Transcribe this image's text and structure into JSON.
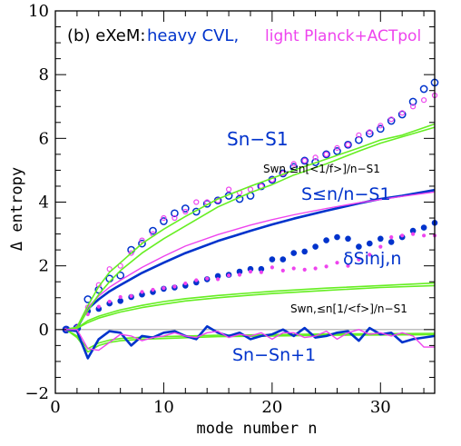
{
  "chart_data": {
    "type": "line",
    "panel_label": "(b) eXeM:",
    "legend_heavy": "heavy CVL,",
    "legend_light": "light Planck+ACTpol",
    "xlabel": "mode number n",
    "ylabel": "Δ entropy",
    "xlim": [
      0,
      35
    ],
    "ylim": [
      -2,
      10
    ],
    "x_ticks": [
      0,
      10,
      20,
      30
    ],
    "y_ticks": [
      -2,
      0,
      2,
      4,
      6,
      8,
      10
    ],
    "colors": {
      "heavy": "#0033cc",
      "light": "#ee44ee",
      "green": "#66ee22",
      "zero_line": "#aaaaaa"
    },
    "annotations": {
      "sn_s1": "Sn−S1",
      "swn_inv_mean": "Swn,≤n[<1/f>]/n−S1",
      "sle_n": "S≤n/n−S1",
      "delta_s_inj": "δSinj,n",
      "swn_mean_inv": "Swn,≤n[1/<f>]/n−S1",
      "sn_sn1": "Sn−Sn+1"
    },
    "series": [
      {
        "key": "sn_s1_heavy",
        "style": "open-circle",
        "color_key": "heavy",
        "x": [
          1,
          2,
          3,
          4,
          5,
          6,
          7,
          8,
          9,
          10,
          11,
          12,
          13,
          14,
          15,
          16,
          17,
          18,
          19,
          20,
          21,
          22,
          23,
          24,
          25,
          26,
          27,
          28,
          29,
          30,
          31,
          32,
          33,
          34,
          35
        ],
        "y": [
          0,
          0.05,
          0.95,
          1.25,
          1.6,
          1.7,
          2.5,
          2.7,
          3.1,
          3.4,
          3.65,
          3.8,
          3.7,
          3.95,
          4.05,
          4.2,
          4.1,
          4.2,
          4.5,
          4.7,
          4.9,
          5.1,
          5.3,
          5.25,
          5.5,
          5.6,
          5.8,
          5.95,
          6.15,
          6.3,
          6.55,
          6.75,
          7.15,
          7.55,
          7.75
        ]
      },
      {
        "key": "sn_s1_light",
        "style": "open-circle-small",
        "color_key": "light",
        "x": [
          1,
          2,
          3,
          4,
          5,
          6,
          7,
          8,
          9,
          10,
          11,
          12,
          13,
          14,
          15,
          16,
          17,
          18,
          19,
          20,
          21,
          22,
          23,
          24,
          25,
          26,
          27,
          28,
          29,
          30,
          31,
          32,
          33,
          34,
          35
        ],
        "y": [
          0,
          0.1,
          0.7,
          1.4,
          1.9,
          2.0,
          2.4,
          2.8,
          3.0,
          3.5,
          3.5,
          3.7,
          4.0,
          4.0,
          4.05,
          4.4,
          4.3,
          4.4,
          4.5,
          4.7,
          4.9,
          5.2,
          5.3,
          5.4,
          5.5,
          5.7,
          5.8,
          6.1,
          6.2,
          6.4,
          6.6,
          6.8,
          7.0,
          7.2,
          7.35
        ]
      },
      {
        "key": "delta_sinj_heavy",
        "style": "filled-circle",
        "color_key": "heavy",
        "x": [
          1,
          2,
          3,
          4,
          5,
          6,
          7,
          8,
          9,
          10,
          11,
          12,
          13,
          14,
          15,
          16,
          17,
          18,
          19,
          20,
          21,
          22,
          23,
          24,
          25,
          26,
          27,
          28,
          29,
          30,
          31,
          32,
          33,
          34,
          35
        ],
        "y": [
          0,
          0.08,
          0.58,
          0.65,
          0.82,
          0.9,
          1.02,
          1.1,
          1.18,
          1.28,
          1.32,
          1.38,
          1.48,
          1.58,
          1.68,
          1.72,
          1.82,
          1.9,
          1.9,
          2.2,
          2.2,
          2.4,
          2.45,
          2.6,
          2.8,
          2.9,
          2.85,
          2.6,
          2.7,
          2.85,
          2.75,
          2.9,
          3.1,
          3.2,
          3.35
        ]
      },
      {
        "key": "delta_sinj_light",
        "style": "filled-circle-small",
        "color_key": "light",
        "x": [
          1,
          2,
          3,
          4,
          5,
          6,
          7,
          8,
          9,
          10,
          11,
          12,
          13,
          14,
          15,
          16,
          17,
          18,
          19,
          20,
          21,
          22,
          23,
          24,
          25,
          26,
          27,
          28,
          29,
          30,
          31,
          32,
          33,
          34,
          35
        ],
        "y": [
          0,
          0.08,
          0.48,
          0.72,
          0.88,
          1.02,
          1.05,
          1.18,
          1.25,
          1.3,
          1.35,
          1.45,
          1.55,
          1.6,
          1.58,
          1.7,
          1.72,
          1.82,
          1.8,
          1.95,
          1.85,
          1.92,
          1.88,
          1.92,
          1.98,
          2.1,
          2.0,
          2.2,
          2.35,
          2.6,
          2.9,
          2.95,
          3.0,
          2.95,
          2.95
        ]
      },
      {
        "key": "sle_n_heavy",
        "style": "line-thick",
        "color_key": "heavy",
        "x": [
          1,
          2,
          3,
          4,
          5,
          6,
          8,
          10,
          12,
          15,
          18,
          20,
          22,
          25,
          28,
          30,
          32,
          35
        ],
        "y": [
          0,
          0.05,
          0.65,
          0.95,
          1.2,
          1.4,
          1.78,
          2.1,
          2.4,
          2.78,
          3.1,
          3.3,
          3.48,
          3.73,
          3.96,
          4.1,
          4.2,
          4.38
        ]
      },
      {
        "key": "sle_n_light",
        "style": "line",
        "color_key": "light",
        "x": [
          1,
          2,
          3,
          4,
          5,
          6,
          8,
          10,
          12,
          15,
          18,
          20,
          22,
          25,
          28,
          30,
          32,
          35
        ],
        "y": [
          0,
          0.08,
          0.7,
          1.05,
          1.33,
          1.55,
          1.95,
          2.3,
          2.62,
          2.98,
          3.28,
          3.45,
          3.6,
          3.8,
          3.98,
          4.08,
          4.18,
          4.32
        ]
      },
      {
        "key": "swn_inv_mean_a",
        "style": "line-green",
        "color_key": "green",
        "x": [
          1,
          2,
          3,
          4,
          5,
          6,
          8,
          10,
          12,
          15,
          18,
          20,
          22,
          25,
          28,
          30,
          32,
          35
        ],
        "y": [
          0,
          0.08,
          0.75,
          1.35,
          1.8,
          2.1,
          2.7,
          3.15,
          3.55,
          4.1,
          4.5,
          4.75,
          5.0,
          5.35,
          5.7,
          5.95,
          6.1,
          6.45
        ]
      },
      {
        "key": "swn_inv_mean_b",
        "style": "line-green",
        "color_key": "green",
        "x": [
          1,
          2,
          3,
          4,
          5,
          6,
          8,
          10,
          12,
          15,
          18,
          20,
          22,
          25,
          28,
          30,
          32,
          35
        ],
        "y": [
          0,
          0.06,
          0.6,
          1.1,
          1.5,
          1.85,
          2.4,
          2.85,
          3.25,
          3.85,
          4.3,
          4.55,
          4.85,
          5.2,
          5.6,
          5.85,
          6.05,
          6.35
        ]
      },
      {
        "key": "swn_mean_inv_a",
        "style": "line-green",
        "color_key": "green",
        "x": [
          1,
          2,
          3,
          4,
          6,
          8,
          10,
          12,
          15,
          18,
          20,
          25,
          30,
          35
        ],
        "y": [
          0,
          0.05,
          0.28,
          0.42,
          0.62,
          0.76,
          0.88,
          0.97,
          1.07,
          1.15,
          1.2,
          1.3,
          1.38,
          1.46
        ]
      },
      {
        "key": "swn_mean_inv_b",
        "style": "line-green",
        "color_key": "green",
        "x": [
          1,
          2,
          3,
          4,
          6,
          8,
          10,
          12,
          15,
          18,
          20,
          25,
          30,
          35
        ],
        "y": [
          0,
          0.04,
          0.22,
          0.36,
          0.55,
          0.69,
          0.8,
          0.9,
          1.0,
          1.08,
          1.13,
          1.23,
          1.32,
          1.38
        ]
      },
      {
        "key": "green_neg_a",
        "style": "line-green",
        "color_key": "green",
        "x": [
          1,
          2,
          3,
          4,
          5,
          6,
          8,
          10,
          15,
          20,
          25,
          30,
          35
        ],
        "y": [
          0,
          -0.25,
          -0.7,
          -0.5,
          -0.4,
          -0.35,
          -0.3,
          -0.28,
          -0.22,
          -0.2,
          -0.18,
          -0.17,
          -0.16
        ]
      },
      {
        "key": "green_neg_b",
        "style": "line-green",
        "color_key": "green",
        "x": [
          1,
          2,
          3,
          4,
          5,
          6,
          8,
          10,
          15,
          20,
          25,
          30,
          35
        ],
        "y": [
          0,
          -0.2,
          -0.6,
          -0.42,
          -0.33,
          -0.28,
          -0.24,
          -0.22,
          -0.18,
          -0.16,
          -0.14,
          -0.13,
          -0.12
        ]
      },
      {
        "key": "sn_sn1_heavy",
        "style": "line-thick",
        "color_key": "heavy",
        "x": [
          1,
          2,
          3,
          4,
          5,
          6,
          7,
          8,
          9,
          10,
          11,
          12,
          13,
          14,
          15,
          16,
          17,
          18,
          19,
          20,
          21,
          22,
          23,
          24,
          25,
          26,
          27,
          28,
          29,
          30,
          31,
          32,
          33,
          34,
          35
        ],
        "y": [
          0,
          -0.05,
          -0.9,
          -0.3,
          -0.05,
          -0.1,
          -0.5,
          -0.2,
          -0.25,
          -0.1,
          -0.05,
          -0.2,
          -0.3,
          0.1,
          -0.1,
          -0.2,
          -0.1,
          -0.3,
          -0.2,
          -0.15,
          0,
          -0.2,
          0.05,
          -0.25,
          -0.2,
          -0.1,
          -0.05,
          -0.35,
          0.05,
          -0.15,
          -0.1,
          -0.4,
          -0.3,
          -0.25,
          -0.2
        ]
      },
      {
        "key": "sn_sn1_light",
        "style": "line",
        "color_key": "light",
        "x": [
          1,
          2,
          3,
          4,
          5,
          6,
          7,
          8,
          9,
          10,
          11,
          12,
          13,
          14,
          15,
          16,
          17,
          18,
          19,
          20,
          21,
          22,
          23,
          24,
          25,
          26,
          27,
          28,
          29,
          30,
          31,
          32,
          33,
          34,
          35
        ],
        "y": [
          0,
          0,
          -0.6,
          -0.65,
          -0.4,
          -0.15,
          -0.2,
          -0.35,
          -0.25,
          -0.2,
          -0.1,
          -0.2,
          -0.25,
          -0.1,
          -0.05,
          -0.25,
          -0.15,
          -0.2,
          -0.1,
          -0.3,
          -0.1,
          -0.1,
          -0.25,
          -0.2,
          -0.05,
          -0.3,
          -0.1,
          0,
          -0.15,
          -0.1,
          -0.2,
          -0.1,
          -0.2,
          -0.55,
          -0.55
        ]
      }
    ]
  }
}
